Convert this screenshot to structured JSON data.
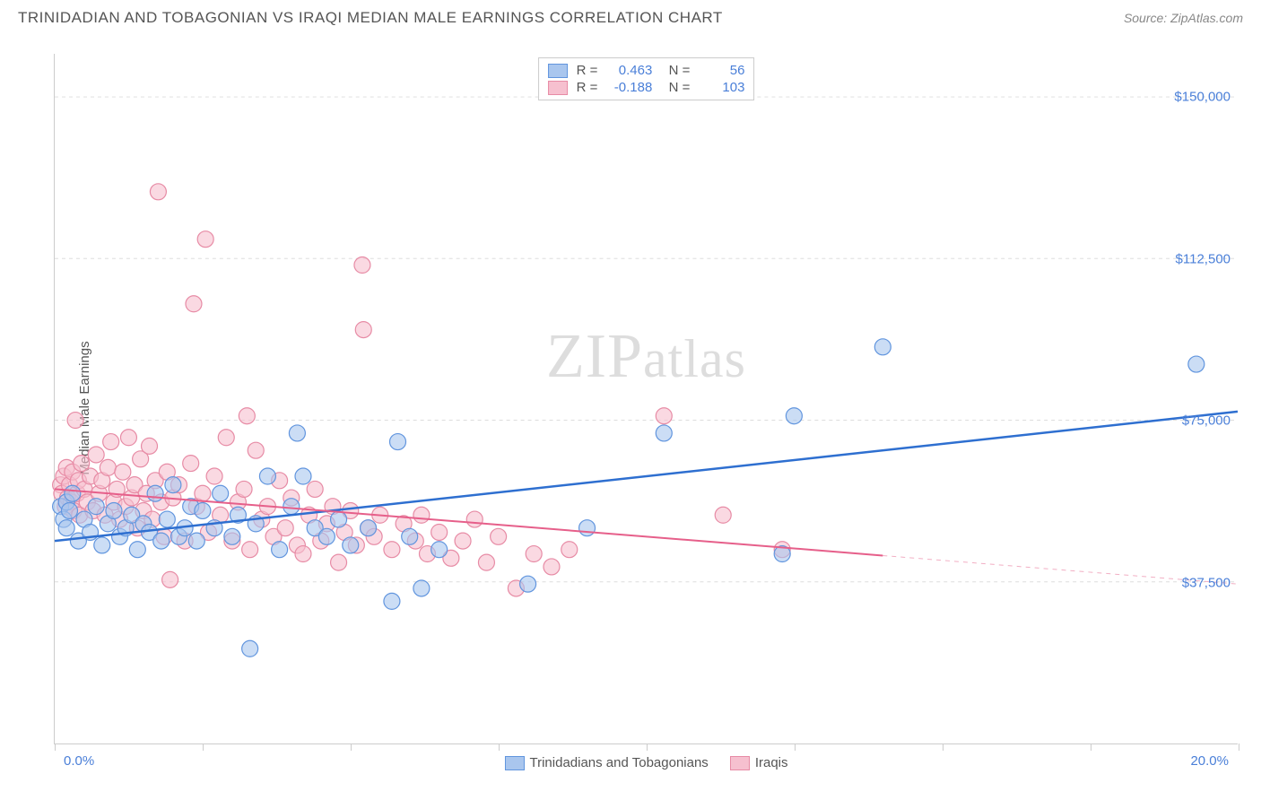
{
  "title": "TRINIDADIAN AND TOBAGONIAN VS IRAQI MEDIAN MALE EARNINGS CORRELATION CHART",
  "source": "Source: ZipAtlas.com",
  "watermark": "ZIPatlas",
  "chart": {
    "type": "scatter",
    "yaxis_title": "Median Male Earnings",
    "xlim": [
      0,
      20
    ],
    "ylim": [
      0,
      160000
    ],
    "ytick_values": [
      37500,
      75000,
      112500,
      150000
    ],
    "ytick_labels": [
      "$37,500",
      "$75,000",
      "$112,500",
      "$150,000"
    ],
    "xtick_values": [
      0,
      2.5,
      5,
      7.5,
      10,
      12.5,
      15,
      17.5,
      20
    ],
    "xlabel_start": "0.0%",
    "xlabel_end": "20.0%",
    "background_color": "#ffffff",
    "grid_color": "#dddddd",
    "axis_color": "#cccccc",
    "ylabel_color": "#4a7fd8",
    "marker_radius": 9,
    "marker_opacity": 0.6,
    "series": [
      {
        "name": "Trinidadians and Tobagonians",
        "color_fill": "#a9c6ee",
        "color_stroke": "#6195de",
        "R": "0.463",
        "N": "56",
        "trend": {
          "x1": 0,
          "y1": 47000,
          "x2": 20,
          "y2": 77000,
          "color": "#2e6fd0",
          "width": 2.5,
          "dash_from_x": null
        },
        "points": [
          [
            0.1,
            55000
          ],
          [
            0.15,
            52000
          ],
          [
            0.2,
            56000
          ],
          [
            0.2,
            50000
          ],
          [
            0.25,
            54000
          ],
          [
            0.3,
            58000
          ],
          [
            0.4,
            47000
          ],
          [
            0.5,
            52000
          ],
          [
            0.6,
            49000
          ],
          [
            0.7,
            55000
          ],
          [
            0.8,
            46000
          ],
          [
            0.9,
            51000
          ],
          [
            1.0,
            54000
          ],
          [
            1.1,
            48000
          ],
          [
            1.2,
            50000
          ],
          [
            1.3,
            53000
          ],
          [
            1.4,
            45000
          ],
          [
            1.5,
            51000
          ],
          [
            1.6,
            49000
          ],
          [
            1.7,
            58000
          ],
          [
            1.8,
            47000
          ],
          [
            1.9,
            52000
          ],
          [
            2.0,
            60000
          ],
          [
            2.1,
            48000
          ],
          [
            2.2,
            50000
          ],
          [
            2.3,
            55000
          ],
          [
            2.4,
            47000
          ],
          [
            2.5,
            54000
          ],
          [
            2.7,
            50000
          ],
          [
            2.8,
            58000
          ],
          [
            3.0,
            48000
          ],
          [
            3.1,
            53000
          ],
          [
            3.3,
            22000
          ],
          [
            3.4,
            51000
          ],
          [
            3.6,
            62000
          ],
          [
            3.8,
            45000
          ],
          [
            4.0,
            55000
          ],
          [
            4.1,
            72000
          ],
          [
            4.2,
            62000
          ],
          [
            4.4,
            50000
          ],
          [
            4.6,
            48000
          ],
          [
            4.8,
            52000
          ],
          [
            5.0,
            46000
          ],
          [
            5.3,
            50000
          ],
          [
            5.7,
            33000
          ],
          [
            5.8,
            70000
          ],
          [
            6.0,
            48000
          ],
          [
            6.2,
            36000
          ],
          [
            6.5,
            45000
          ],
          [
            8.0,
            37000
          ],
          [
            9.0,
            50000
          ],
          [
            10.3,
            72000
          ],
          [
            12.3,
            44000
          ],
          [
            12.5,
            76000
          ],
          [
            14.0,
            92000
          ],
          [
            19.3,
            88000
          ]
        ]
      },
      {
        "name": "Iraqis",
        "color_fill": "#f6c0cf",
        "color_stroke": "#e78ba5",
        "R": "-0.188",
        "N": "103",
        "trend": {
          "x1": 0,
          "y1": 59000,
          "x2": 20,
          "y2": 37000,
          "color": "#e65f8a",
          "width": 2,
          "dash_from_x": 14
        },
        "points": [
          [
            0.1,
            60000
          ],
          [
            0.12,
            58000
          ],
          [
            0.15,
            62000
          ],
          [
            0.18,
            55000
          ],
          [
            0.2,
            64000
          ],
          [
            0.22,
            57000
          ],
          [
            0.25,
            60000
          ],
          [
            0.28,
            56000
          ],
          [
            0.3,
            63000
          ],
          [
            0.32,
            54000
          ],
          [
            0.35,
            75000
          ],
          [
            0.38,
            58000
          ],
          [
            0.4,
            61000
          ],
          [
            0.42,
            53000
          ],
          [
            0.45,
            65000
          ],
          [
            0.5,
            59000
          ],
          [
            0.55,
            56000
          ],
          [
            0.6,
            62000
          ],
          [
            0.65,
            54000
          ],
          [
            0.7,
            67000
          ],
          [
            0.75,
            58000
          ],
          [
            0.8,
            61000
          ],
          [
            0.85,
            53000
          ],
          [
            0.9,
            64000
          ],
          [
            0.95,
            70000
          ],
          [
            1.0,
            56000
          ],
          [
            1.05,
            59000
          ],
          [
            1.1,
            52000
          ],
          [
            1.15,
            63000
          ],
          [
            1.2,
            55000
          ],
          [
            1.25,
            71000
          ],
          [
            1.3,
            57000
          ],
          [
            1.35,
            60000
          ],
          [
            1.4,
            50000
          ],
          [
            1.45,
            66000
          ],
          [
            1.5,
            54000
          ],
          [
            1.55,
            58000
          ],
          [
            1.6,
            69000
          ],
          [
            1.65,
            52000
          ],
          [
            1.7,
            61000
          ],
          [
            1.75,
            128000
          ],
          [
            1.8,
            56000
          ],
          [
            1.85,
            48000
          ],
          [
            1.9,
            63000
          ],
          [
            1.95,
            38000
          ],
          [
            2.0,
            57000
          ],
          [
            2.1,
            60000
          ],
          [
            2.2,
            47000
          ],
          [
            2.3,
            65000
          ],
          [
            2.35,
            102000
          ],
          [
            2.4,
            55000
          ],
          [
            2.5,
            58000
          ],
          [
            2.55,
            117000
          ],
          [
            2.6,
            49000
          ],
          [
            2.7,
            62000
          ],
          [
            2.8,
            53000
          ],
          [
            2.9,
            71000
          ],
          [
            3.0,
            47000
          ],
          [
            3.1,
            56000
          ],
          [
            3.2,
            59000
          ],
          [
            3.25,
            76000
          ],
          [
            3.3,
            45000
          ],
          [
            3.4,
            68000
          ],
          [
            3.5,
            52000
          ],
          [
            3.6,
            55000
          ],
          [
            3.7,
            48000
          ],
          [
            3.8,
            61000
          ],
          [
            3.9,
            50000
          ],
          [
            4.0,
            57000
          ],
          [
            4.1,
            46000
          ],
          [
            4.2,
            44000
          ],
          [
            4.3,
            53000
          ],
          [
            4.4,
            59000
          ],
          [
            4.5,
            47000
          ],
          [
            4.6,
            51000
          ],
          [
            4.7,
            55000
          ],
          [
            4.8,
            42000
          ],
          [
            4.9,
            49000
          ],
          [
            5.0,
            54000
          ],
          [
            5.1,
            46000
          ],
          [
            5.2,
            111000
          ],
          [
            5.22,
            96000
          ],
          [
            5.3,
            50000
          ],
          [
            5.4,
            48000
          ],
          [
            5.5,
            53000
          ],
          [
            5.7,
            45000
          ],
          [
            5.9,
            51000
          ],
          [
            6.1,
            47000
          ],
          [
            6.2,
            53000
          ],
          [
            6.3,
            44000
          ],
          [
            6.5,
            49000
          ],
          [
            6.7,
            43000
          ],
          [
            6.9,
            47000
          ],
          [
            7.1,
            52000
          ],
          [
            7.3,
            42000
          ],
          [
            7.5,
            48000
          ],
          [
            7.8,
            36000
          ],
          [
            8.1,
            44000
          ],
          [
            8.4,
            41000
          ],
          [
            8.7,
            45000
          ],
          [
            10.3,
            76000
          ],
          [
            11.3,
            53000
          ],
          [
            12.3,
            45000
          ]
        ]
      }
    ],
    "legend": {
      "items": [
        "Trinidadians and Tobagonians",
        "Iraqis"
      ]
    }
  }
}
